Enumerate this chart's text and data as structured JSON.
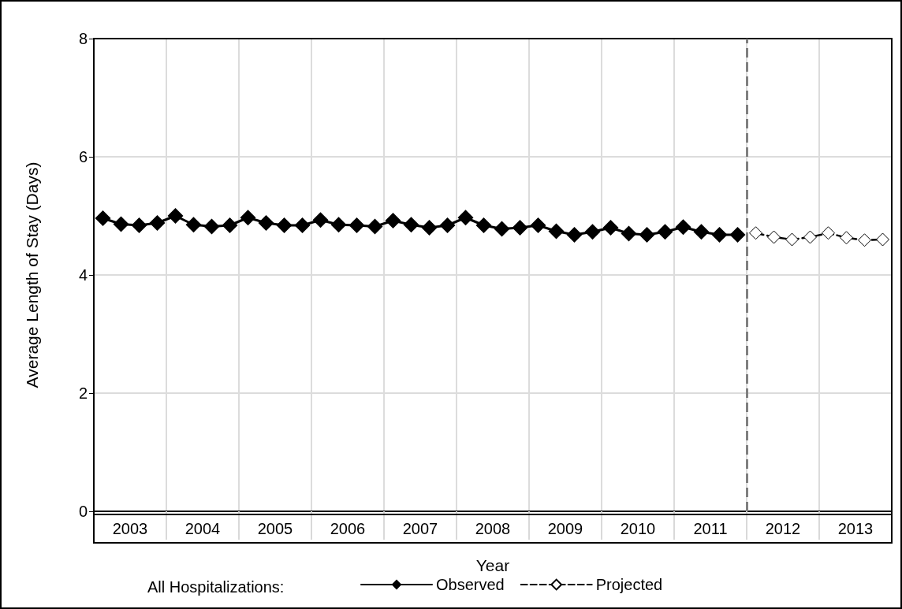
{
  "chart_data": {
    "type": "line",
    "xlabel": "Year",
    "ylabel": "Average Length of Stay (Days)",
    "legend_title": "All Hospitalizations:",
    "xlim": [
      2003,
      2014
    ],
    "ylim": [
      0,
      8
    ],
    "yticks": [
      0,
      2,
      4,
      6,
      8
    ],
    "xticks": [
      {
        "value": 2003.5,
        "label": "2003"
      },
      {
        "value": 2004,
        "label": null
      },
      {
        "value": 2004.5,
        "label": "2004"
      },
      {
        "value": 2005,
        "label": null
      },
      {
        "value": 2005.5,
        "label": "2005"
      },
      {
        "value": 2006,
        "label": null
      },
      {
        "value": 2006.5,
        "label": "2006"
      },
      {
        "value": 2007,
        "label": null
      },
      {
        "value": 2007.5,
        "label": "2007"
      },
      {
        "value": 2008,
        "label": null
      },
      {
        "value": 2008.5,
        "label": "2008"
      },
      {
        "value": 2009,
        "label": null
      },
      {
        "value": 2009.5,
        "label": "2009"
      },
      {
        "value": 2010,
        "label": null
      },
      {
        "value": 2010.5,
        "label": "2010"
      },
      {
        "value": 2011,
        "label": null
      },
      {
        "value": 2011.5,
        "label": "2011"
      },
      {
        "value": 2012,
        "label": null
      },
      {
        "value": 2012.5,
        "label": "2012"
      },
      {
        "value": 2013,
        "label": null
      },
      {
        "value": 2013.5,
        "label": "2013"
      }
    ],
    "grid": true,
    "legend": "bottom",
    "marker": "diamond",
    "ref_lines": [
      {
        "axis": "x",
        "value": 2012,
        "color": "#808080",
        "line_style": "dashed"
      }
    ],
    "series": [
      {
        "name": "Observed",
        "color": "#000000",
        "line_style": "solid",
        "x": [
          2003.125,
          2003.375,
          2003.625,
          2003.875,
          2004.125,
          2004.375,
          2004.625,
          2004.875,
          2005.125,
          2005.375,
          2005.625,
          2005.875,
          2006.125,
          2006.375,
          2006.625,
          2006.875,
          2007.125,
          2007.375,
          2007.625,
          2007.875,
          2008.125,
          2008.375,
          2008.625,
          2008.875,
          2009.125,
          2009.375,
          2009.625,
          2009.875,
          2010.125,
          2010.375,
          2010.625,
          2010.875,
          2011.125,
          2011.375,
          2011.625,
          2011.875
        ],
        "values": [
          4.96,
          4.86,
          4.84,
          4.88,
          5.0,
          4.85,
          4.82,
          4.84,
          4.97,
          4.88,
          4.84,
          4.84,
          4.93,
          4.85,
          4.84,
          4.82,
          4.92,
          4.85,
          4.8,
          4.84,
          4.97,
          4.84,
          4.78,
          4.8,
          4.84,
          4.74,
          4.68,
          4.73,
          4.8,
          4.7,
          4.68,
          4.73,
          4.81,
          4.73,
          4.68,
          4.68
        ]
      },
      {
        "name": "Projected",
        "color": "#000000",
        "line_style": "dashed",
        "x": [
          2012.125,
          2012.375,
          2012.625,
          2012.875,
          2013.125,
          2013.375,
          2013.625,
          2013.875
        ],
        "values": [
          4.71,
          4.64,
          4.6,
          4.64,
          4.71,
          4.63,
          4.59,
          4.6
        ]
      }
    ]
  }
}
